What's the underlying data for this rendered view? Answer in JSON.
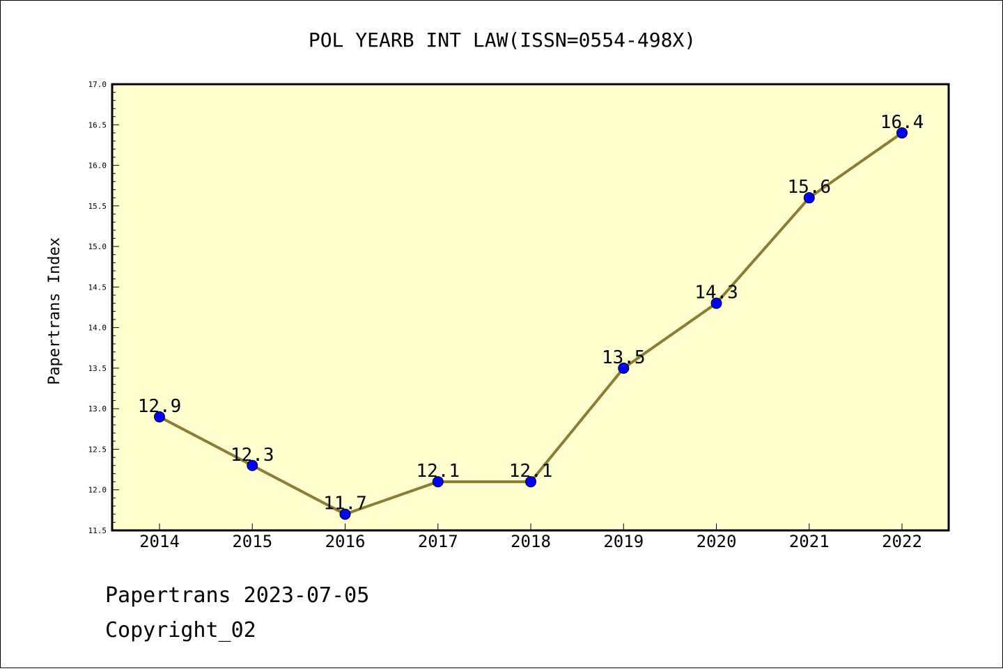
{
  "chart_data": {
    "type": "line",
    "title": "POL YEARB INT LAW(ISSN=0554-498X)",
    "xlabel": "",
    "ylabel": "Papertrans Index",
    "categories": [
      "2014",
      "2015",
      "2016",
      "2017",
      "2018",
      "2019",
      "2020",
      "2021",
      "2022"
    ],
    "series": [
      {
        "values": [
          12.9,
          12.3,
          11.7,
          12.1,
          12.1,
          13.5,
          14.3,
          15.6,
          16.4
        ]
      }
    ],
    "data_labels": [
      "12.9",
      "12.3",
      "11.7",
      "12.1",
      "12.1",
      "13.5",
      "14.3",
      "15.6",
      "16.4"
    ],
    "ylim": [
      11.5,
      17.0
    ],
    "yticks": [
      "11.5",
      "12.0",
      "12.5",
      "13.0",
      "13.5",
      "14.0",
      "14.5",
      "15.0",
      "15.5",
      "16.0",
      "16.5",
      "17.0"
    ],
    "grid": false,
    "legend": "none",
    "colors": {
      "plot_background": "#ffffd0",
      "line": "#8b7d32",
      "marker": "#0000ff"
    }
  },
  "footer": {
    "line1": "Papertrans 2023-07-05",
    "line2": "Copyright_02"
  }
}
